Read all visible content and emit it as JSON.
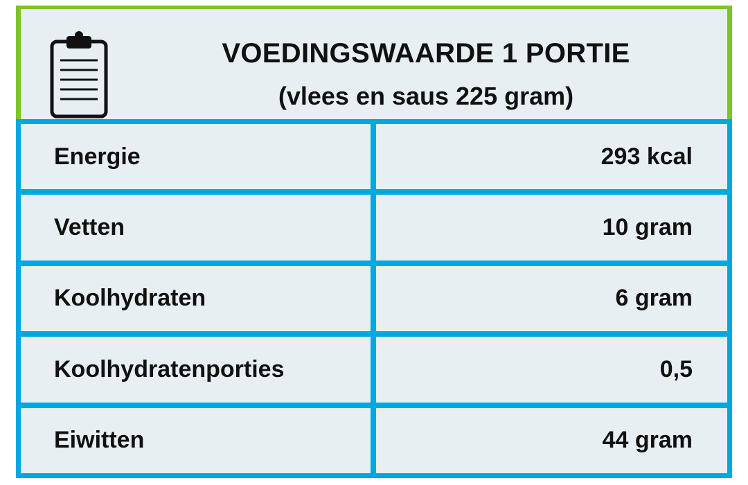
{
  "header": {
    "title": "VOEDINGSWAARDE 1 PORTIE",
    "subtitle": "(vlees en saus 225 gram)",
    "icon": "clipboard-icon"
  },
  "colors": {
    "header_border": "#7dc424",
    "table_border": "#00a7e1",
    "cell_background": "#e8eff2",
    "text": "#111111"
  },
  "rows": [
    {
      "label": "Energie",
      "value": "293 kcal"
    },
    {
      "label": "Vetten",
      "value": "10 gram"
    },
    {
      "label": "Koolhydraten",
      "value": "6 gram"
    },
    {
      "label": "Koolhydratenporties",
      "value": "0,5"
    },
    {
      "label": "Eiwitten",
      "value": "44 gram"
    }
  ]
}
